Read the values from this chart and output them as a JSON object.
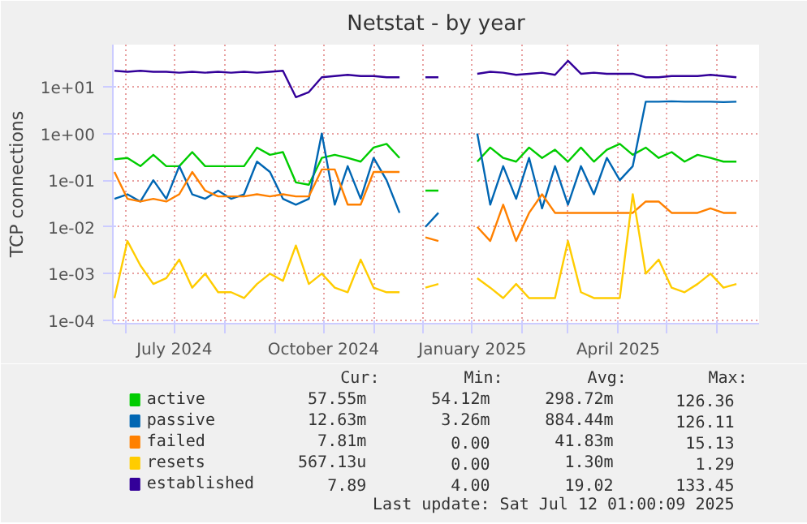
{
  "chart_data": {
    "type": "line",
    "title": "Netstat - by year",
    "ylabel": "TCP connections",
    "log": "y",
    "grid": true,
    "legend": "bottom",
    "x": [
      "2024-05-25",
      "2024-06-02",
      "2024-06-10",
      "2024-06-18",
      "2024-06-26",
      "2024-07-04",
      "2024-07-12",
      "2024-07-20",
      "2024-07-28",
      "2024-08-05",
      "2024-08-13",
      "2024-08-21",
      "2024-08-29",
      "2024-09-06",
      "2024-09-14",
      "2024-09-22",
      "2024-09-30",
      "2024-10-08",
      "2024-10-16",
      "2024-10-24",
      "2024-11-01",
      "2024-11-09",
      "2024-11-17",
      "2024-11-25",
      "2024-12-03",
      "2024-12-11",
      "2024-12-19",
      "2024-12-27",
      "2025-01-04",
      "2025-01-12",
      "2025-01-20",
      "2025-01-28",
      "2025-02-05",
      "2025-02-13",
      "2025-02-21",
      "2025-03-01",
      "2025-03-09",
      "2025-03-17",
      "2025-03-25",
      "2025-04-02",
      "2025-04-10",
      "2025-04-18",
      "2025-04-26",
      "2025-05-04",
      "2025-05-12",
      "2025-05-20",
      "2025-05-28",
      "2025-06-05",
      "2025-06-13"
    ],
    "series": [
      {
        "name": "active",
        "color": "#00cc00",
        "values": [
          0.28,
          0.3,
          0.2,
          0.35,
          0.2,
          0.2,
          0.4,
          0.2,
          0.2,
          0.2,
          0.2,
          0.5,
          0.35,
          0.4,
          0.09,
          0.08,
          0.3,
          0.35,
          0.3,
          0.25,
          0.5,
          0.6,
          0.3,
          null,
          0.06,
          0.06,
          null,
          null,
          0.25,
          0.5,
          0.3,
          0.25,
          0.5,
          0.3,
          0.45,
          0.25,
          0.5,
          0.25,
          0.45,
          0.6,
          0.35,
          0.5,
          0.3,
          0.4,
          0.25,
          0.35,
          0.3,
          0.25,
          0.25
        ]
      },
      {
        "name": "passive",
        "color": "#0066b3",
        "values": [
          0.04,
          0.05,
          0.035,
          0.1,
          0.04,
          0.2,
          0.05,
          0.04,
          0.06,
          0.04,
          0.05,
          0.25,
          0.15,
          0.04,
          0.03,
          0.04,
          1.0,
          0.03,
          0.2,
          0.04,
          0.3,
          0.1,
          0.02,
          null,
          0.01,
          0.02,
          null,
          null,
          1.0,
          0.03,
          0.2,
          0.04,
          0.3,
          0.025,
          0.2,
          0.03,
          0.2,
          0.05,
          0.3,
          0.1,
          0.2,
          4.8,
          4.8,
          4.9,
          4.8,
          4.8,
          4.8,
          4.7,
          4.8
        ]
      },
      {
        "name": "failed",
        "color": "#ff8000",
        "values": [
          0.15,
          0.04,
          0.035,
          0.04,
          0.035,
          0.05,
          0.15,
          0.06,
          0.045,
          0.045,
          0.045,
          0.05,
          0.045,
          0.05,
          0.045,
          0.045,
          0.17,
          0.17,
          0.03,
          0.03,
          0.15,
          0.15,
          0.15,
          null,
          0.006,
          0.005,
          null,
          null,
          0.01,
          0.005,
          0.03,
          0.005,
          0.02,
          0.05,
          0.02,
          0.02,
          0.02,
          0.02,
          0.02,
          0.02,
          0.02,
          0.035,
          0.035,
          0.02,
          0.02,
          0.02,
          0.025,
          0.02,
          0.02
        ]
      },
      {
        "name": "resets",
        "color": "#ffcc00",
        "values": [
          0.0003,
          0.005,
          0.0015,
          0.0006,
          0.0008,
          0.002,
          0.0005,
          0.001,
          0.0004,
          0.0004,
          0.0003,
          0.0006,
          0.001,
          0.0007,
          0.004,
          0.0006,
          0.001,
          0.0005,
          0.0004,
          0.002,
          0.0005,
          0.0004,
          0.0004,
          null,
          0.0005,
          0.0006,
          null,
          null,
          0.0008,
          0.0005,
          0.0003,
          0.0006,
          0.0003,
          0.0003,
          0.0003,
          0.005,
          0.0004,
          0.0003,
          0.0003,
          0.0003,
          0.05,
          0.001,
          0.002,
          0.0005,
          0.0004,
          0.0006,
          0.001,
          0.0005,
          0.0006
        ]
      },
      {
        "name": "established",
        "color": "#330099",
        "values": [
          22,
          21,
          22,
          21,
          21,
          20,
          21,
          20,
          21,
          20,
          21,
          20,
          21,
          22,
          6,
          7.7,
          16,
          17,
          18,
          17,
          17,
          16,
          16,
          null,
          16,
          16,
          null,
          null,
          19,
          21,
          20,
          18,
          19,
          20,
          18,
          36,
          19,
          20,
          19,
          19,
          19,
          16,
          16,
          17,
          17,
          17,
          18,
          17,
          16
        ]
      }
    ],
    "xlim": [
      "2024-05-24",
      "2025-06-27"
    ],
    "xticks": [
      {
        "value": "2024-06-01",
        "label": null
      },
      {
        "value": "2024-07-01",
        "label": "July 2024"
      },
      {
        "value": "2024-08-01",
        "label": null
      },
      {
        "value": "2024-09-01",
        "label": null
      },
      {
        "value": "2024-10-01",
        "label": "October 2024"
      },
      {
        "value": "2024-11-01",
        "label": null
      },
      {
        "value": "2024-12-01",
        "label": null
      },
      {
        "value": "2025-01-01",
        "label": "January 2025"
      },
      {
        "value": "2025-02-01",
        "label": null
      },
      {
        "value": "2025-03-01",
        "label": null
      },
      {
        "value": "2025-04-01",
        "label": "April 2025"
      },
      {
        "value": "2025-05-01",
        "label": null
      },
      {
        "value": "2025-06-01",
        "label": null
      }
    ],
    "ylim": [
      8.5e-05,
      80
    ],
    "yticks": [
      {
        "value": 0.0001,
        "label": "1e-04"
      },
      {
        "value": 0.001,
        "label": "1e-03"
      },
      {
        "value": 0.01,
        "label": "1e-02"
      },
      {
        "value": 0.1,
        "label": "1e-01"
      },
      {
        "value": 1,
        "label": "1e+00"
      },
      {
        "value": 10,
        "label": "1e+01"
      }
    ],
    "annotations": [
      "Cur:",
      "Min:",
      "Avg:",
      "Max:",
      "57.55m",
      "54.12m",
      "298.72m",
      "126.36",
      "12.63m",
      "3.26m",
      "884.44m",
      "126.11",
      "7.81m",
      "0.00",
      "41.83m",
      "15.13",
      "567.13u",
      "0.00",
      "1.30m",
      "1.29",
      "7.89",
      "4.00",
      "19.02",
      "133.45",
      "Last update: Sat Jul 12 01:00:09 2025"
    ]
  }
}
